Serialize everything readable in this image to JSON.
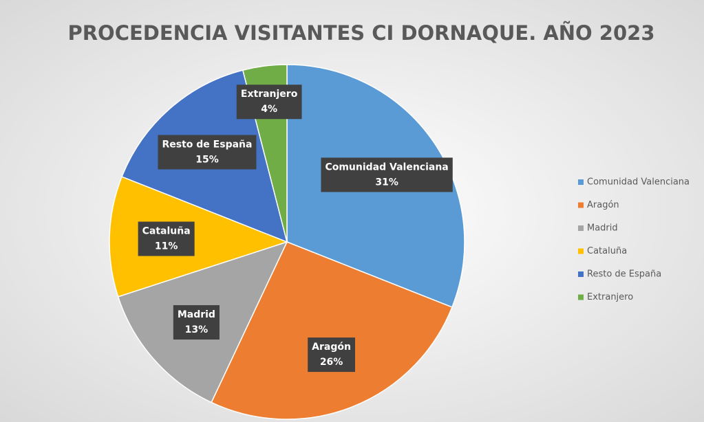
{
  "chart_data": {
    "type": "pie",
    "title": "PROCEDENCIA VISITANTES CI DORNAQUE. AÑO 2023",
    "categories": [
      "Comunidad Valenciana",
      "Aragón",
      "Madrid",
      "Cataluña",
      "Resto de España",
      "Extranjero"
    ],
    "values": [
      31,
      26,
      13,
      11,
      15,
      4
    ],
    "value_labels": [
      "31%",
      "26%",
      "13%",
      "11%",
      "15%",
      "4%"
    ],
    "colors": [
      "#5b9bd5",
      "#ed7d31",
      "#a5a5a5",
      "#ffc000",
      "#4472c4",
      "#70ad47"
    ],
    "legend": "right"
  }
}
